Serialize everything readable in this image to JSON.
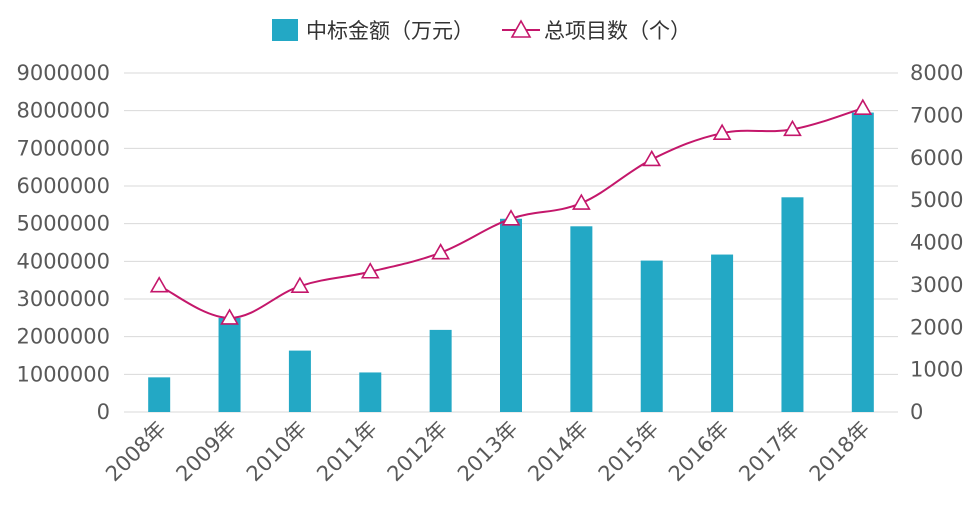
{
  "chart_data": {
    "type": "bar+line",
    "categories": [
      "2008年",
      "2009年",
      "2010年",
      "2011年",
      "2012年",
      "2013年",
      "2014年",
      "2015年",
      "2016年",
      "2017年",
      "2018年"
    ],
    "series": [
      {
        "name": "中标金额（万元）",
        "type": "bar",
        "axis": "left",
        "color": "#23A8C5",
        "values": [
          920000,
          2500000,
          1630000,
          1050000,
          2180000,
          5130000,
          4930000,
          4020000,
          4180000,
          5700000,
          7950000
        ]
      },
      {
        "name": "总项目数（个）",
        "type": "line",
        "axis": "right",
        "color": "#C4176B",
        "marker": "triangle",
        "values": [
          2980,
          2220,
          2970,
          3310,
          3760,
          4560,
          4930,
          5960,
          6580,
          6670,
          7170
        ]
      }
    ],
    "y_left": {
      "min": 0,
      "max": 9000000,
      "ticks": [
        "0",
        "1000000",
        "2000000",
        "3000000",
        "4000000",
        "5000000",
        "6000000",
        "7000000",
        "8000000",
        "9000000"
      ]
    },
    "y_right": {
      "min": 0,
      "max": 8000,
      "ticks": [
        "0",
        "1000",
        "2000",
        "3000",
        "4000",
        "5000",
        "6000",
        "7000",
        "8000"
      ]
    },
    "grid": true,
    "legend_position": "top-center"
  }
}
